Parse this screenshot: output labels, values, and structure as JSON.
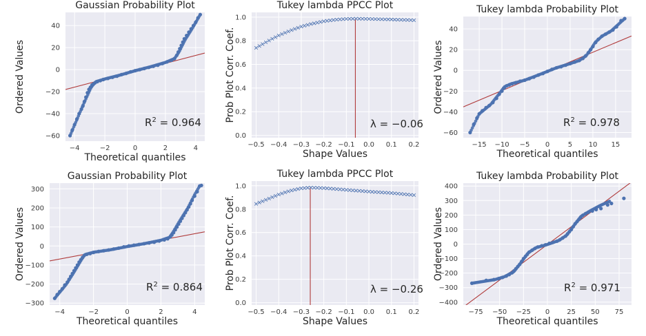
{
  "chart_data": [
    {
      "type": "scatter",
      "title": "Gaussian Probability Plot",
      "xlabel": "Theoretical quantiles",
      "ylabel": "Ordered Values",
      "xlim": [
        -4.6,
        4.6
      ],
      "ylim": [
        -65,
        52
      ],
      "xticks": [
        -4,
        -2,
        0,
        2,
        4
      ],
      "yticks": [
        -60,
        -40,
        -20,
        0,
        20,
        40
      ],
      "annotation": {
        "base": "R",
        "sup": "2",
        "rest": " = 0.964"
      },
      "fit_line": {
        "slope": 3.6,
        "intercept": -1.5
      },
      "curve": [
        [
          -4.3,
          -60
        ],
        [
          -3.4,
          -31
        ],
        [
          -2.9,
          -16
        ],
        [
          -2.6,
          -11
        ],
        [
          -2,
          -8.5
        ],
        [
          -1,
          -5
        ],
        [
          0,
          -1
        ],
        [
          1,
          2.5
        ],
        [
          2,
          6.5
        ],
        [
          2.6,
          10
        ],
        [
          2.9,
          16
        ],
        [
          3.3,
          27
        ],
        [
          3.8,
          38
        ],
        [
          4.3,
          50
        ]
      ],
      "points": [
        [
          -4.3,
          -60
        ],
        [
          -4.15,
          -55
        ],
        [
          -4.0,
          -50
        ],
        [
          -3.85,
          -45
        ],
        [
          -3.7,
          -40
        ],
        [
          -3.55,
          -36
        ],
        [
          -3.45,
          -33
        ],
        [
          -3.35,
          -29
        ],
        [
          -3.25,
          -25
        ],
        [
          -3.15,
          -21
        ],
        [
          -3.05,
          -18
        ],
        [
          -2.95,
          -16
        ],
        [
          -2.85,
          -14
        ],
        [
          -2.75,
          -13
        ],
        [
          -2.65,
          -12
        ],
        [
          -2.5,
          -11
        ],
        [
          -2.3,
          -10
        ],
        [
          -2.1,
          -9
        ],
        [
          -1.8,
          -8
        ],
        [
          -1.5,
          -7
        ],
        [
          -1.2,
          -6
        ],
        [
          -0.9,
          -4.5
        ],
        [
          -0.6,
          -3.5
        ],
        [
          -0.3,
          -2
        ],
        [
          0,
          -1
        ],
        [
          0.3,
          0
        ],
        [
          0.6,
          1
        ],
        [
          0.9,
          2
        ],
        [
          1.2,
          3
        ],
        [
          1.5,
          4
        ],
        [
          1.8,
          5.5
        ],
        [
          2.1,
          7
        ],
        [
          2.4,
          8.5
        ],
        [
          2.6,
          10
        ],
        [
          2.75,
          13
        ],
        [
          2.85,
          16
        ],
        [
          2.95,
          19
        ],
        [
          3.05,
          22
        ],
        [
          3.15,
          25
        ],
        [
          3.25,
          28
        ],
        [
          3.4,
          31
        ],
        [
          3.55,
          34
        ],
        [
          3.7,
          37
        ],
        [
          3.85,
          40
        ],
        [
          4.0,
          43
        ],
        [
          4.15,
          47
        ],
        [
          4.3,
          50
        ]
      ]
    },
    {
      "type": "line",
      "title": "Tukey lambda PPCC Plot",
      "xlabel": "Shape Values",
      "ylabel": "Prob Plot Corr. Coef.",
      "xlim": [
        -0.52,
        0.22
      ],
      "ylim": [
        -0.02,
        1.04
      ],
      "xticks": [
        -0.5,
        -0.4,
        -0.3,
        -0.2,
        -0.1,
        0.0,
        0.1,
        0.2
      ],
      "yticks": [
        0.0,
        0.2,
        0.4,
        0.6,
        0.8,
        1.0
      ],
      "annotation": {
        "base": "λ = −0.06",
        "sup": "",
        "rest": ""
      },
      "vline": {
        "x": -0.06,
        "y_top": 0.985
      },
      "marker": "x",
      "x_start": -0.5,
      "x_end": 0.2,
      "n_points": 50,
      "curve": [
        [
          -0.5,
          0.74
        ],
        [
          -0.45,
          0.795
        ],
        [
          -0.4,
          0.845
        ],
        [
          -0.35,
          0.885
        ],
        [
          -0.3,
          0.92
        ],
        [
          -0.25,
          0.945
        ],
        [
          -0.2,
          0.965
        ],
        [
          -0.15,
          0.978
        ],
        [
          -0.1,
          0.985
        ],
        [
          -0.06,
          0.987
        ],
        [
          0.0,
          0.985
        ],
        [
          0.1,
          0.98
        ],
        [
          0.2,
          0.974
        ]
      ]
    },
    {
      "type": "scatter",
      "title": "Tukey lambda Probability Plot",
      "xlabel": "Theoretical quantiles",
      "ylabel": "Ordered Values",
      "xlim": [
        -18.5,
        18.5
      ],
      "ylim": [
        -65,
        52
      ],
      "xticks": [
        -15,
        -10,
        -5,
        0,
        5,
        10,
        15
      ],
      "yticks": [
        -60,
        -40,
        -20,
        0,
        20,
        40
      ],
      "annotation": {
        "base": "R",
        "sup": "2",
        "rest": " = 0.978"
      },
      "fit_line": {
        "slope": 1.85,
        "intercept": -1
      },
      "curve": [
        [
          -17,
          -60
        ],
        [
          -15,
          -42
        ],
        [
          -12.5,
          -33
        ],
        [
          -10.5,
          -22
        ],
        [
          -9.5,
          -16
        ],
        [
          -8,
          -13
        ],
        [
          -5,
          -9.5
        ],
        [
          -2,
          -4.5
        ],
        [
          0,
          -1
        ],
        [
          2,
          2.5
        ],
        [
          5,
          6.5
        ],
        [
          7,
          9.5
        ],
        [
          8.5,
          14
        ],
        [
          9.5,
          20
        ],
        [
          10.5,
          27
        ],
        [
          12,
          33
        ],
        [
          14,
          38
        ],
        [
          15.5,
          44
        ],
        [
          17,
          50
        ]
      ],
      "points": [
        [
          -17,
          -60
        ],
        [
          -16.2,
          -52
        ],
        [
          -15.5,
          -46
        ],
        [
          -15,
          -42
        ],
        [
          -14.3,
          -39
        ],
        [
          -13.5,
          -36
        ],
        [
          -12.8,
          -34
        ],
        [
          -12,
          -31
        ],
        [
          -11.2,
          -27
        ],
        [
          -10.6,
          -23
        ],
        [
          -10,
          -20
        ],
        [
          -9.5,
          -17
        ],
        [
          -9,
          -15
        ],
        [
          -8.4,
          -14
        ],
        [
          -7.8,
          -13
        ],
        [
          -7,
          -12
        ],
        [
          -6,
          -10.5
        ],
        [
          -5,
          -9.5
        ],
        [
          -4,
          -8
        ],
        [
          -3,
          -6.5
        ],
        [
          -2,
          -4.5
        ],
        [
          -1,
          -3
        ],
        [
          0,
          -1
        ],
        [
          1,
          1
        ],
        [
          2,
          2.5
        ],
        [
          3,
          3.5
        ],
        [
          4,
          5
        ],
        [
          5,
          6.5
        ],
        [
          6,
          8
        ],
        [
          7,
          9.5
        ],
        [
          7.8,
          11.5
        ],
        [
          8.4,
          14
        ],
        [
          9,
          17
        ],
        [
          9.5,
          20
        ],
        [
          10,
          23
        ],
        [
          10.6,
          27
        ],
        [
          11.2,
          30
        ],
        [
          12,
          33
        ],
        [
          12.8,
          35
        ],
        [
          13.6,
          37
        ],
        [
          14.4,
          39
        ],
        [
          15.2,
          42
        ],
        [
          16.2,
          48
        ],
        [
          17,
          50
        ]
      ]
    },
    {
      "type": "scatter",
      "title": "Gaussian Probability Plot",
      "xlabel": "Theoretical quantiles",
      "ylabel": "Ordered Values",
      "xlim": [
        -4.6,
        4.6
      ],
      "ylim": [
        -310,
        330
      ],
      "xticks": [
        -4,
        -2,
        0,
        2,
        4
      ],
      "yticks": [
        -300,
        -200,
        -100,
        0,
        100,
        200,
        300
      ],
      "annotation": {
        "base": "R",
        "sup": "2",
        "rest": " = 0.864"
      },
      "fit_line": {
        "slope": 16.6,
        "intercept": -2
      },
      "curve": [
        [
          -4.3,
          -275
        ],
        [
          -3.6,
          -200
        ],
        [
          -3.1,
          -130
        ],
        [
          -2.7,
          -70
        ],
        [
          -2.5,
          -45
        ],
        [
          -2,
          -33
        ],
        [
          -1,
          -20
        ],
        [
          0,
          -3
        ],
        [
          1,
          12
        ],
        [
          2,
          30
        ],
        [
          2.5,
          45
        ],
        [
          2.7,
          70
        ],
        [
          3.1,
          130
        ],
        [
          3.6,
          200
        ],
        [
          4.0,
          270
        ],
        [
          4.3,
          315
        ]
      ],
      "points": [
        [
          -4.3,
          -275
        ],
        [
          -4.15,
          -255
        ],
        [
          -4.0,
          -240
        ],
        [
          -3.85,
          -225
        ],
        [
          -3.7,
          -205
        ],
        [
          -3.55,
          -190
        ],
        [
          -3.45,
          -175
        ],
        [
          -3.35,
          -160
        ],
        [
          -3.25,
          -145
        ],
        [
          -3.15,
          -130
        ],
        [
          -3.05,
          -115
        ],
        [
          -2.95,
          -100
        ],
        [
          -2.85,
          -85
        ],
        [
          -2.75,
          -72
        ],
        [
          -2.65,
          -60
        ],
        [
          -2.55,
          -50
        ],
        [
          -2.4,
          -44
        ],
        [
          -2.2,
          -40
        ],
        [
          -2.0,
          -34
        ],
        [
          -1.7,
          -29
        ],
        [
          -1.4,
          -25
        ],
        [
          -1.1,
          -21
        ],
        [
          -0.8,
          -16
        ],
        [
          -0.5,
          -11
        ],
        [
          -0.2,
          -5
        ],
        [
          0.1,
          0
        ],
        [
          0.4,
          4
        ],
        [
          0.7,
          8
        ],
        [
          1.0,
          12
        ],
        [
          1.3,
          16
        ],
        [
          1.6,
          20
        ],
        [
          1.9,
          26
        ],
        [
          2.2,
          32
        ],
        [
          2.4,
          38
        ],
        [
          2.55,
          48
        ],
        [
          2.65,
          58
        ],
        [
          2.75,
          70
        ],
        [
          2.85,
          85
        ],
        [
          2.95,
          100
        ],
        [
          3.05,
          115
        ],
        [
          3.15,
          130
        ],
        [
          3.25,
          145
        ],
        [
          3.35,
          160
        ],
        [
          3.45,
          175
        ],
        [
          3.55,
          190
        ],
        [
          3.65,
          205
        ],
        [
          3.75,
          222
        ],
        [
          3.85,
          240
        ],
        [
          4.0,
          262
        ],
        [
          4.15,
          285
        ],
        [
          4.3,
          315
        ],
        [
          4.4,
          318
        ]
      ]
    },
    {
      "type": "line",
      "title": "Tukey lambda PPCC Plot",
      "xlabel": "Shape Values",
      "ylabel": "Prob Plot Corr. Coef.",
      "xlim": [
        -0.52,
        0.22
      ],
      "ylim": [
        -0.02,
        1.04
      ],
      "xticks": [
        -0.5,
        -0.4,
        -0.3,
        -0.2,
        -0.1,
        0.0,
        0.1,
        0.2
      ],
      "yticks": [
        0.0,
        0.2,
        0.4,
        0.6,
        0.8,
        1.0
      ],
      "annotation": {
        "base": "λ = −0.26",
        "sup": "",
        "rest": ""
      },
      "vline": {
        "x": -0.26,
        "y_top": 0.985
      },
      "marker": "x",
      "x_start": -0.5,
      "x_end": 0.2,
      "n_points": 50,
      "curve": [
        [
          -0.5,
          0.845
        ],
        [
          -0.45,
          0.885
        ],
        [
          -0.4,
          0.925
        ],
        [
          -0.35,
          0.957
        ],
        [
          -0.3,
          0.978
        ],
        [
          -0.26,
          0.985
        ],
        [
          -0.2,
          0.98
        ],
        [
          -0.1,
          0.965
        ],
        [
          0.0,
          0.95
        ],
        [
          0.1,
          0.938
        ],
        [
          0.2,
          0.92
        ]
      ]
    },
    {
      "type": "scatter",
      "title": "Tukey lambda Probability Plot",
      "xlabel": "Theoretical quantiles",
      "ylabel": "Ordered Values",
      "xlim": [
        -88,
        88
      ],
      "ylim": [
        -420,
        420
      ],
      "xticks": [
        -75,
        -50,
        -25,
        0,
        25,
        50,
        75
      ],
      "yticks": [
        -400,
        -300,
        -200,
        -100,
        0,
        100,
        200,
        300,
        400
      ],
      "annotation": {
        "base": "R",
        "sup": "2",
        "rest": " = 0.971"
      },
      "fit_line": {
        "slope": 4.9,
        "intercept": -3
      },
      "curve": [
        [
          -79,
          -270
        ],
        [
          -55,
          -245
        ],
        [
          -45,
          -225
        ],
        [
          -35,
          -190
        ],
        [
          -28,
          -130
        ],
        [
          -20,
          -60
        ],
        [
          -12,
          -25
        ],
        [
          0,
          -3
        ],
        [
          12,
          25
        ],
        [
          20,
          60
        ],
        [
          28,
          130
        ],
        [
          35,
          190
        ],
        [
          45,
          230
        ],
        [
          55,
          265
        ],
        [
          65,
          295
        ]
      ],
      "points": [
        [
          -79,
          -270
        ],
        [
          -64,
          -250
        ],
        [
          -56,
          -245
        ],
        [
          -51,
          -238
        ],
        [
          -47,
          -230
        ],
        [
          -43,
          -220
        ],
        [
          -40,
          -210
        ],
        [
          -37,
          -198
        ],
        [
          -35,
          -185
        ],
        [
          -33,
          -170
        ],
        [
          -31,
          -155
        ],
        [
          -29,
          -140
        ],
        [
          -27,
          -120
        ],
        [
          -25,
          -100
        ],
        [
          -23,
          -85
        ],
        [
          -21,
          -70
        ],
        [
          -19,
          -55
        ],
        [
          -16,
          -42
        ],
        [
          -13,
          -30
        ],
        [
          -10,
          -20
        ],
        [
          -6,
          -12
        ],
        [
          -2,
          -5
        ],
        [
          2,
          5
        ],
        [
          6,
          12
        ],
        [
          10,
          20
        ],
        [
          13,
          30
        ],
        [
          16,
          42
        ],
        [
          19,
          55
        ],
        [
          21,
          70
        ],
        [
          23,
          85
        ],
        [
          25,
          100
        ],
        [
          27,
          120
        ],
        [
          29,
          140
        ],
        [
          31,
          155
        ],
        [
          33,
          170
        ],
        [
          35,
          185
        ],
        [
          37,
          198
        ],
        [
          40,
          210
        ],
        [
          43,
          220
        ],
        [
          47,
          228
        ],
        [
          51,
          238
        ],
        [
          56,
          245
        ],
        [
          63,
          270
        ],
        [
          67,
          280
        ],
        [
          80,
          315
        ]
      ]
    }
  ]
}
